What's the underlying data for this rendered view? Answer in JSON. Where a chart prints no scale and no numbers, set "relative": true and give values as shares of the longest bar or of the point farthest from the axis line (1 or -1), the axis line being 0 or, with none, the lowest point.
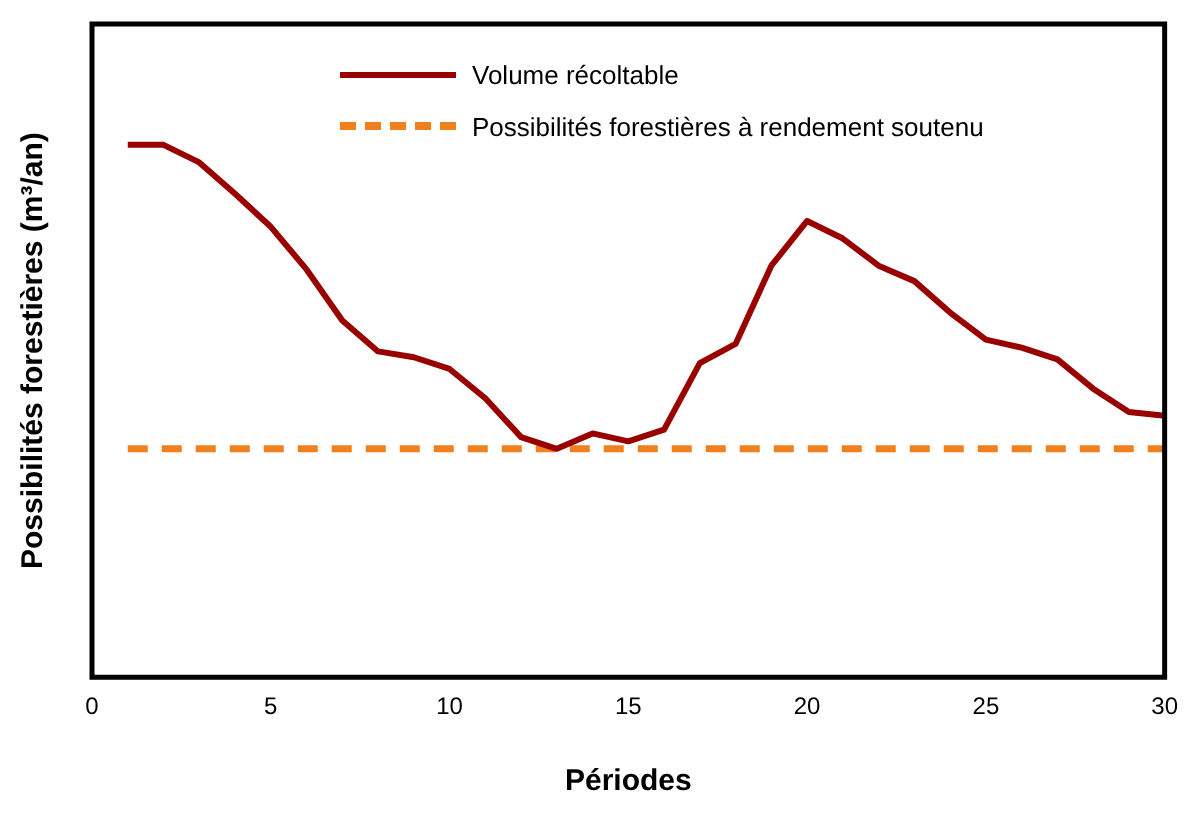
{
  "chart_data": {
    "type": "line",
    "relative": true,
    "xlabel": "Périodes",
    "ylabel": "Possibilités forestières (m³/an)",
    "xlim": [
      0,
      30
    ],
    "xticks": [
      0,
      5,
      10,
      15,
      20,
      25,
      30
    ],
    "tick_labels": "x",
    "legend": "top",
    "series": [
      {
        "name": "Volume récoltable",
        "color": "#990000",
        "line_style": "solid",
        "x": [
          1,
          2,
          3,
          4,
          5,
          6,
          7,
          8,
          9,
          10,
          11,
          12,
          13,
          14,
          15,
          16,
          17,
          18,
          19,
          20,
          21,
          22,
          23,
          24,
          25,
          26,
          27,
          28,
          29,
          30
        ],
        "values": [
          1,
          1,
          0.967,
          0.908,
          0.846,
          0.766,
          0.67,
          0.612,
          0.601,
          0.579,
          0.524,
          0.451,
          0.429,
          0.458,
          0.443,
          0.465,
          0.59,
          0.626,
          0.773,
          0.857,
          0.824,
          0.773,
          0.744,
          0.685,
          0.634,
          0.619,
          0.597,
          0.542,
          0.498,
          0.491
        ]
      },
      {
        "name": "Possibilités forestières à rendement soutenu",
        "color": "#f07f1e",
        "line_style": "dashed",
        "x": [
          1,
          30
        ],
        "values": [
          0.429,
          0.429
        ]
      }
    ]
  }
}
